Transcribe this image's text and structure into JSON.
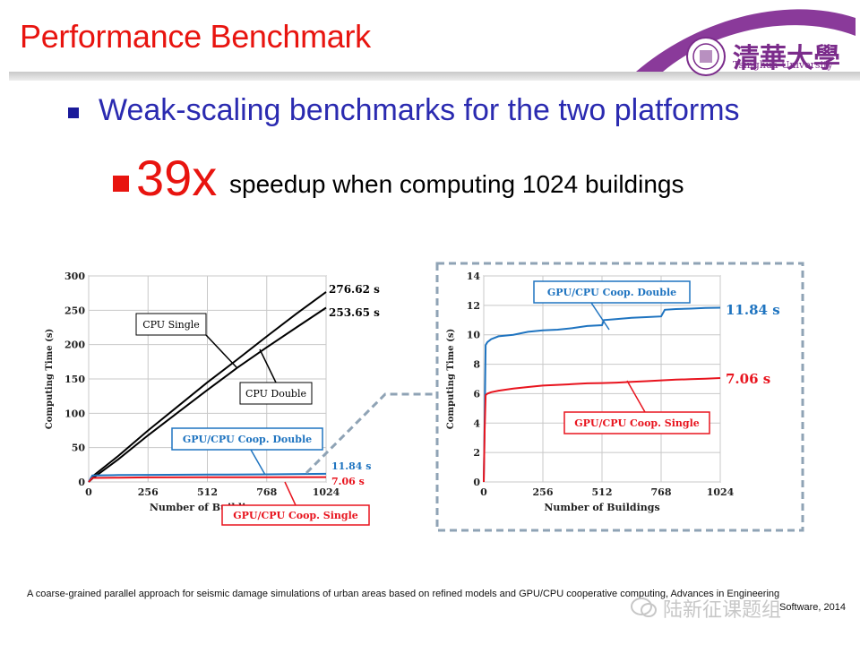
{
  "slide": {
    "title": "Performance Benchmark",
    "bullet_main": "Weak-scaling benchmarks for the two platforms",
    "speedup_value": "39x",
    "speedup_text": "speedup when computing 1024 buildings",
    "citation": "A coarse-grained parallel approach for seismic damage simulations of urban areas based on refined models and GPU/CPU cooperative computing, Advances in Engineering",
    "citation_line2": "Software, 2014",
    "logo_cn": "清華大學",
    "logo_en": "Tsinghua University",
    "watermark": "陆新征课题组"
  },
  "colors": {
    "title": "#e8140f",
    "bullet_text": "#2a2ab0",
    "cpu_series": "#000000",
    "gpu_double": "#1f74c0",
    "gpu_single": "#e8141e",
    "inset_border": "#8fa3b5",
    "logo": "#7b2c8b"
  },
  "chart_data": [
    {
      "type": "line",
      "xlabel": "Number of Buildings",
      "ylabel": "Computing Time (s)",
      "xlim": [
        0,
        1024
      ],
      "ylim": [
        0,
        300
      ],
      "xticks": [
        0,
        256,
        512,
        768,
        1024
      ],
      "yticks": [
        0,
        50,
        100,
        150,
        200,
        250,
        300
      ],
      "grid": true,
      "series": [
        {
          "name": "CPU Single",
          "x": [
            0,
            16,
            128,
            256,
            384,
            512,
            640,
            768,
            896,
            1024
          ],
          "values": [
            0,
            8,
            38,
            75,
            110,
            145,
            178,
            212,
            245,
            276.62
          ]
        },
        {
          "name": "CPU Double",
          "x": [
            0,
            16,
            128,
            256,
            384,
            512,
            640,
            768,
            896,
            1024
          ],
          "values": [
            0,
            5,
            33,
            68,
            101,
            134,
            166,
            196,
            225,
            253.65
          ]
        },
        {
          "name": "GPU/CPU Coop. Double",
          "x": [
            0,
            16,
            128,
            256,
            512,
            768,
            1024
          ],
          "values": [
            0,
            9.4,
            10,
            10.3,
            10.7,
            11.1,
            11.84
          ]
        },
        {
          "name": "GPU/CPU Coop. Single",
          "x": [
            0,
            16,
            128,
            256,
            512,
            768,
            1024
          ],
          "values": [
            0,
            5.9,
            6.3,
            6.6,
            6.8,
            6.95,
            7.06
          ]
        }
      ],
      "annotations": [
        "276.62 s",
        "253.65 s",
        "11.84 s",
        "7.06 s"
      ]
    },
    {
      "type": "line",
      "xlabel": "Number of Buildings",
      "ylabel": "Computing Time (s)",
      "xlim": [
        0,
        1024
      ],
      "ylim": [
        0,
        14
      ],
      "xticks": [
        0,
        256,
        512,
        768,
        1024
      ],
      "yticks": [
        0,
        2,
        4,
        6,
        8,
        10,
        12,
        14
      ],
      "grid": true,
      "series": [
        {
          "name": "GPU/CPU Coop. Double",
          "x": [
            0,
            4,
            8,
            16,
            32,
            64,
            128,
            192,
            256,
            320,
            384,
            448,
            512,
            520,
            560,
            640,
            704,
            768,
            784,
            832,
            896,
            960,
            1024
          ],
          "values": [
            0,
            4,
            9.3,
            9.5,
            9.7,
            9.9,
            10.0,
            10.2,
            10.3,
            10.35,
            10.45,
            10.6,
            10.65,
            11.0,
            11.05,
            11.15,
            11.2,
            11.25,
            11.7,
            11.75,
            11.78,
            11.82,
            11.84
          ]
        },
        {
          "name": "GPU/CPU Coop. Single",
          "x": [
            0,
            4,
            8,
            16,
            32,
            64,
            128,
            192,
            256,
            320,
            384,
            448,
            512,
            576,
            640,
            704,
            768,
            832,
            896,
            960,
            1024
          ],
          "values": [
            0,
            3.5,
            5.9,
            6.0,
            6.1,
            6.2,
            6.35,
            6.45,
            6.55,
            6.6,
            6.65,
            6.7,
            6.72,
            6.75,
            6.8,
            6.85,
            6.9,
            6.95,
            6.98,
            7.02,
            7.06
          ]
        }
      ],
      "annotations": [
        "11.84 s",
        "7.06 s"
      ]
    }
  ]
}
